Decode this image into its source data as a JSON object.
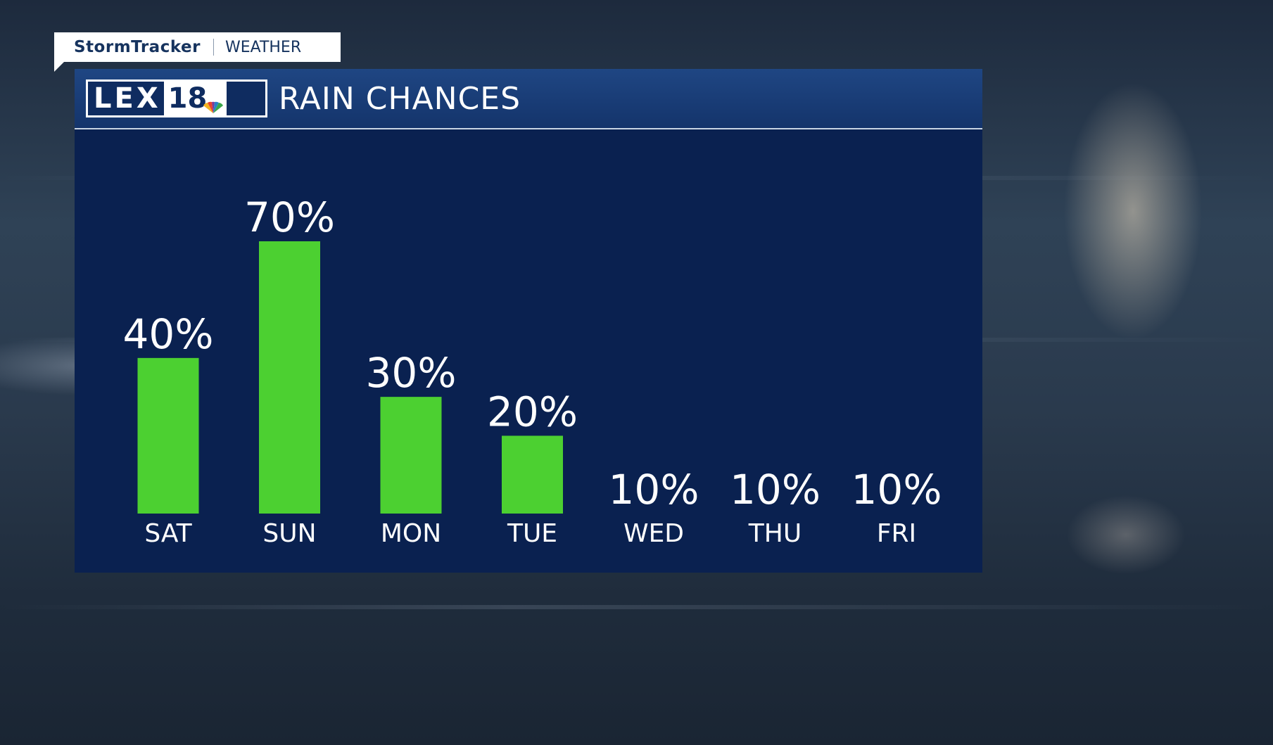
{
  "branding": {
    "tab_name": "StormTracker",
    "tab_sub": "WEATHER",
    "station_text": "LEX",
    "station_number": "18",
    "peacock_icon": "nbc-peacock-icon"
  },
  "panel": {
    "title": "RAIN CHANCES"
  },
  "chart_data": {
    "type": "bar",
    "title": "RAIN CHANCES",
    "categories": [
      "SAT",
      "SUN",
      "MON",
      "TUE",
      "WED",
      "THU",
      "FRI"
    ],
    "values": [
      40,
      70,
      30,
      20,
      10,
      10,
      10
    ],
    "value_labels": [
      "40%",
      "70%",
      "30%",
      "20%",
      "10%",
      "10%",
      "10%"
    ],
    "bars_drawn": [
      true,
      true,
      true,
      true,
      false,
      false,
      false
    ],
    "ylim": [
      0,
      100
    ],
    "unit": "%",
    "bar_color": "#4cd031",
    "background_color": "#0a2150",
    "grid": false,
    "legend": "none"
  }
}
